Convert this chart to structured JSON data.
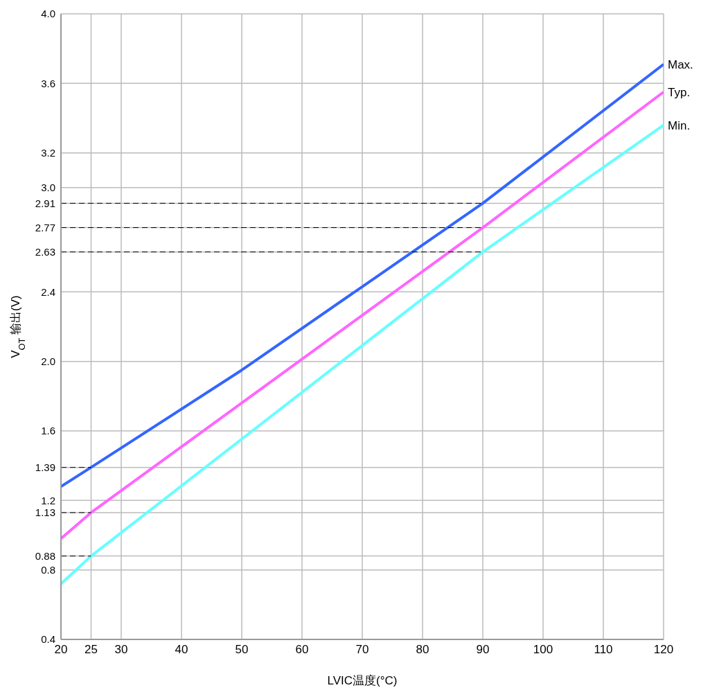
{
  "chart_data": {
    "type": "line",
    "xlabel": "LVIC温度(°C)",
    "ylabel": "V$_{OT}$ 输出(V)",
    "xlim": [
      20,
      120
    ],
    "xticks": [
      20,
      25,
      30,
      40,
      50,
      60,
      70,
      80,
      90,
      100,
      110,
      120
    ],
    "ylim": [
      0.4,
      4.0
    ],
    "yticks": [
      0.4,
      0.8,
      0.88,
      1.13,
      1.2,
      1.39,
      1.6,
      {
        "value": 2,
        "label": "2.0"
      },
      2.4,
      2.63,
      2.77,
      2.91,
      {
        "value": 3,
        "label": "3.0"
      },
      3.2,
      3.6,
      {
        "value": 4,
        "label": "4.0"
      }
    ],
    "grid": true,
    "line_style": "solid",
    "marker": "none",
    "series": [
      {
        "name": "Max.",
        "color": "#3366ff",
        "x": [
          20,
          25,
          50,
          70,
          90,
          120
        ],
        "values": [
          1.28,
          1.39,
          1.95,
          2.43,
          2.91,
          3.71
        ]
      },
      {
        "name": "Typ.",
        "color": "#ff66ff",
        "x": [
          20,
          25,
          90,
          120
        ],
        "values": [
          0.98,
          1.13,
          2.77,
          3.55
        ]
      },
      {
        "name": "Min.",
        "color": "#66ffff",
        "x": [
          20,
          25,
          90,
          120
        ],
        "values": [
          0.72,
          0.88,
          2.63,
          3.36
        ]
      },
      {
        "color": "#000000",
        "line_style": "dashed",
        "x": [
          20,
          90
        ],
        "values": [
          2.91,
          2.91
        ]
      },
      {
        "color": "#000000",
        "line_style": "dashed",
        "x": [
          20,
          90
        ],
        "values": [
          2.77,
          2.77
        ]
      },
      {
        "color": "#000000",
        "line_style": "dashed",
        "x": [
          20,
          90
        ],
        "values": [
          2.63,
          2.63
        ]
      },
      {
        "color": "#000000",
        "line_style": "dashed",
        "x": [
          20,
          25
        ],
        "values": [
          1.39,
          1.39
        ]
      },
      {
        "color": "#000000",
        "line_style": "dashed",
        "x": [
          20,
          25
        ],
        "values": [
          1.13,
          1.13
        ]
      },
      {
        "color": "#000000",
        "line_style": "dashed",
        "x": [
          20,
          25
        ],
        "values": [
          0.88,
          0.88
        ]
      }
    ]
  }
}
